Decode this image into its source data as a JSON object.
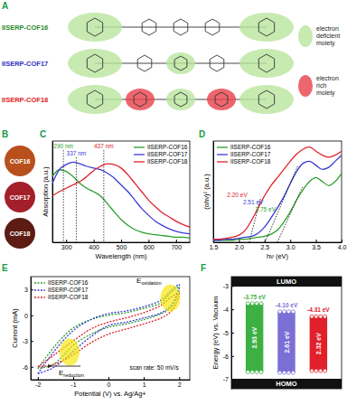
{
  "panel_labels": [
    "A",
    "B",
    "C",
    "D",
    "E",
    "F"
  ],
  "diagram_a": {
    "labels": [
      "IISERP-COF16",
      "IISERP-COF17",
      "IISERP-COF18"
    ],
    "label_colors": [
      "#2a8a2a",
      "#3030c0",
      "#e02020"
    ],
    "legend": [
      {
        "label": "electron deficient moiety",
        "color": "#b9e59e"
      },
      {
        "label": "electron rich moiety",
        "color": "#e8404a"
      }
    ]
  },
  "photos_b": {
    "labels": [
      "COF16",
      "COF17",
      "COF18"
    ],
    "colors": [
      "#b8501e",
      "#a3202a",
      "#5c1c14"
    ]
  },
  "chart_data": [
    {
      "type": "line",
      "x_label": "Wavelength (nm)",
      "y_label": "Absorption (a.u.)",
      "legend": "top-right",
      "tick_labels": "x",
      "x": [
        250,
        275,
        300,
        325,
        350,
        375,
        400,
        425,
        450,
        475,
        500,
        525,
        550,
        575,
        600,
        625,
        650,
        675,
        700,
        725,
        750
      ],
      "xlim": [
        250,
        750
      ],
      "xticks": [
        300,
        400,
        500,
        600,
        700
      ],
      "ylim": [
        0,
        1.2
      ],
      "series": [
        {
          "name": "IISERP-COF16",
          "color": "#2ca02c",
          "values": [
            0.78,
            0.86,
            0.84,
            0.78,
            0.7,
            0.64,
            0.6,
            0.55,
            0.46,
            0.36,
            0.27,
            0.2,
            0.15,
            0.12,
            0.1,
            0.09,
            0.08,
            0.07,
            0.06,
            0.06,
            0.05
          ]
        },
        {
          "name": "IISERP-COF17",
          "color": "#3b3bd6",
          "values": [
            0.7,
            0.86,
            0.92,
            0.95,
            0.93,
            0.9,
            0.88,
            0.86,
            0.82,
            0.76,
            0.68,
            0.6,
            0.5,
            0.4,
            0.32,
            0.25,
            0.2,
            0.16,
            0.13,
            0.11,
            0.1
          ]
        },
        {
          "name": "IISERP-COF18",
          "color": "#e0202a",
          "values": [
            0.55,
            0.6,
            0.64,
            0.68,
            0.72,
            0.78,
            0.85,
            0.9,
            0.93,
            0.92,
            0.88,
            0.8,
            0.7,
            0.6,
            0.5,
            0.42,
            0.35,
            0.3,
            0.25,
            0.21,
            0.18
          ]
        }
      ],
      "annotations": [
        {
          "type": "vline",
          "text": "290 nm",
          "x": 290,
          "color": "#2ca02c"
        },
        {
          "type": "vline",
          "text": "337 nm",
          "x": 337,
          "color": "#3b3bd6"
        },
        {
          "type": "vline",
          "text": "437 nm",
          "x": 437,
          "color": "#e0202a"
        }
      ]
    },
    {
      "type": "line",
      "x_label": "hν (eV)",
      "y_label": "(αhν)² (a.u.)",
      "legend": "top-left",
      "tick_labels": "x",
      "x": [
        1.5,
        1.625,
        1.75,
        1.875,
        2.0,
        2.125,
        2.25,
        2.375,
        2.5,
        2.625,
        2.75,
        2.875,
        3.0,
        3.125,
        3.25,
        3.375,
        3.5,
        3.625,
        3.75,
        3.875,
        4.0
      ],
      "xlim": [
        1.5,
        4.0
      ],
      "xticks": [
        1.5,
        {
          "value": 2,
          "label": "2.0"
        },
        2.5,
        {
          "value": 3,
          "label": "3.0"
        },
        3.5,
        {
          "value": 4,
          "label": "4.0"
        }
      ],
      "ylim": [
        0,
        1
      ],
      "series": [
        {
          "name": "IISERP-COF16",
          "color": "#2ca02c",
          "values": [
            0.02,
            0.02,
            0.02,
            0.02,
            0.03,
            0.03,
            0.04,
            0.05,
            0.06,
            0.08,
            0.12,
            0.2,
            0.3,
            0.42,
            0.52,
            0.6,
            0.64,
            0.6,
            0.56,
            0.6,
            0.68
          ]
        },
        {
          "name": "IISERP-COF17",
          "color": "#3b3bd6",
          "values": [
            0.02,
            0.02,
            0.03,
            0.03,
            0.04,
            0.05,
            0.06,
            0.09,
            0.15,
            0.24,
            0.34,
            0.45,
            0.58,
            0.7,
            0.78,
            0.8,
            0.76,
            0.72,
            0.74,
            0.8,
            0.86
          ]
        },
        {
          "name": "IISERP-COF18",
          "color": "#e0202a",
          "values": [
            0.03,
            0.03,
            0.04,
            0.05,
            0.07,
            0.12,
            0.22,
            0.34,
            0.46,
            0.56,
            0.64,
            0.72,
            0.8,
            0.87,
            0.92,
            0.94,
            0.9,
            0.86,
            0.84,
            0.86,
            0.9
          ]
        }
      ],
      "annotations": [
        {
          "type": "tangent",
          "text": "2.20 eV",
          "x": 2.2,
          "color": "#e0202a"
        },
        {
          "type": "tangent",
          "text": "2.51 eV",
          "x": 2.51,
          "color": "#3b3bd6"
        },
        {
          "type": "tangent",
          "text": "2.75 eV",
          "x": 2.75,
          "color": "#2ca02c"
        }
      ]
    },
    {
      "type": "line",
      "x_label": "Potential (V) vs. Ag/Ag+",
      "y_label": "Current (mA)",
      "legend": "top-left",
      "xlim": [
        -2.2,
        2.3
      ],
      "xticks": [
        -2,
        -1,
        0,
        1,
        2
      ],
      "ylim": [
        -7.5,
        4.5
      ],
      "yticks": [
        -6,
        -3,
        0,
        3
      ],
      "series": [
        {
          "name": "IISERP-COF16",
          "color": "#2ca02c",
          "line_style": "dotted",
          "x": [
            -2,
            -1.5,
            -1,
            -0.5,
            0,
            0.5,
            1,
            1.5,
            1.8,
            2,
            1.8,
            1.5,
            1,
            0.5,
            0,
            -0.5,
            -1,
            -1.3,
            -1.6,
            -2
          ],
          "values": [
            -6.2,
            -3.5,
            -1.5,
            -0.5,
            0,
            0.3,
            0.8,
            1.5,
            2.8,
            3.3,
            1.0,
            0.2,
            -0.5,
            -1.0,
            -1.4,
            -2.2,
            -3.5,
            -4.8,
            -5.8,
            -6.2
          ]
        },
        {
          "name": "IISERP-COF17",
          "color": "#3b3bd6",
          "line_style": "dotted",
          "x": [
            -2,
            -1.5,
            -1,
            -0.5,
            0,
            0.5,
            1,
            1.5,
            1.8,
            2,
            1.8,
            1.5,
            1,
            0.5,
            0,
            -0.5,
            -1,
            -1.3,
            -1.6,
            -2
          ],
          "values": [
            -6.8,
            -4,
            -1.8,
            -0.5,
            0.2,
            0.5,
            1,
            1.8,
            3,
            3.6,
            1.3,
            0.3,
            -0.3,
            -0.8,
            -1.2,
            -2.5,
            -4.2,
            -5.3,
            -6.2,
            -6.8
          ]
        },
        {
          "name": "IISERP-COF18",
          "color": "#e0202a",
          "line_style": "dotted",
          "x": [
            -2,
            -1.5,
            -1,
            -0.5,
            0,
            0.5,
            1,
            1.5,
            1.8,
            2,
            1.8,
            1.5,
            1,
            0.5,
            0,
            -0.5,
            -1,
            -1.3,
            -1.6,
            -2
          ],
          "values": [
            -6,
            -4.5,
            -3,
            -1.6,
            -0.8,
            -0.3,
            0.3,
            1.2,
            2.2,
            2.6,
            0.6,
            -0.3,
            -1,
            -1.6,
            -2.2,
            -3.2,
            -4.6,
            -5.3,
            -5.8,
            -6
          ]
        }
      ],
      "annotations": [
        {
          "text": "E",
          "sub": "oxidation",
          "x": 1.75,
          "y": 2.0
        },
        {
          "text": "E",
          "sub": "reduction",
          "x": -1.1,
          "y": -4.3
        },
        {
          "text": "scan rate: 50 mV/s",
          "x": 0.6,
          "y": -6.3
        }
      ]
    },
    {
      "type": "bar",
      "y_label": "Energy (eV) vs. Vacuum",
      "tick_labels": "y",
      "categories": [
        null,
        null,
        null
      ],
      "ylim": [
        -7.4,
        -2.6
      ],
      "yticks": [
        -7,
        -6,
        -5,
        -4,
        -3
      ],
      "band_labels": [
        "LUMO",
        "HOMO"
      ],
      "colors": [
        "#3cb043",
        "#7b6fd6",
        "#e0202a"
      ],
      "values": [
        -3.75,
        -4.1,
        -4.31
      ],
      "value_labels": [
        "-3.75 eV",
        "-4.10 eV",
        "-4.31 eV"
      ],
      "gaps": [
        2.93,
        2.61,
        2.32
      ],
      "gap_labels": [
        "2.93 eV",
        "2.61 eV",
        "2.32 eV"
      ],
      "data_labels": true
    }
  ]
}
